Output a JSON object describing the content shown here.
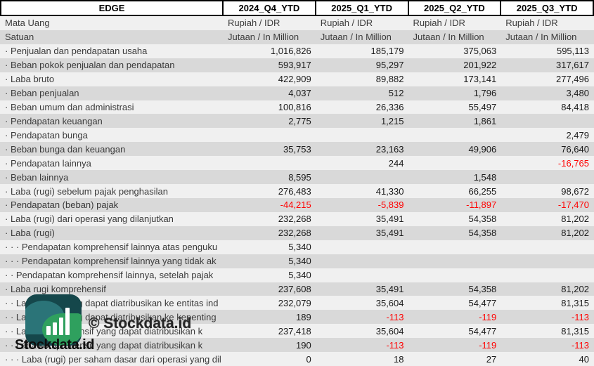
{
  "header": {
    "entity": "EDGE",
    "periods": [
      "2024_Q4_YTD",
      "2025_Q1_YTD",
      "2025_Q2_YTD",
      "2025_Q3_YTD"
    ]
  },
  "meta_rows": [
    {
      "label": "Mata Uang",
      "values": [
        "Rupiah / IDR",
        "Rupiah / IDR",
        "Rupiah / IDR",
        "Rupiah / IDR"
      ]
    },
    {
      "label": "Satuan",
      "values": [
        "Jutaan / In Million",
        "Jutaan / In Million",
        "Jutaan / In Million",
        "Jutaan / In Million"
      ]
    }
  ],
  "rows": [
    {
      "label": "· Penjualan dan pendapatan usaha",
      "values": [
        "1,016,826",
        "185,179",
        "375,063",
        "595,113"
      ]
    },
    {
      "label": "· Beban pokok penjualan dan pendapatan",
      "values": [
        "593,917",
        "95,297",
        "201,922",
        "317,617"
      ]
    },
    {
      "label": "· Laba bruto",
      "values": [
        "422,909",
        "89,882",
        "173,141",
        "277,496"
      ]
    },
    {
      "label": "· Beban penjualan",
      "values": [
        "4,037",
        "512",
        "1,796",
        "3,480"
      ]
    },
    {
      "label": "· Beban umum dan administrasi",
      "values": [
        "100,816",
        "26,336",
        "55,497",
        "84,418"
      ]
    },
    {
      "label": "· Pendapatan keuangan",
      "values": [
        "2,775",
        "1,215",
        "1,861",
        ""
      ]
    },
    {
      "label": "· Pendapatan bunga",
      "values": [
        "",
        "",
        "",
        "2,479"
      ]
    },
    {
      "label": "· Beban bunga dan keuangan",
      "values": [
        "35,753",
        "23,163",
        "49,906",
        "76,640"
      ]
    },
    {
      "label": "· Pendapatan lainnya",
      "values": [
        "",
        "244",
        "",
        "-16,765"
      ]
    },
    {
      "label": "· Beban lainnya",
      "values": [
        "8,595",
        "",
        "1,548",
        ""
      ]
    },
    {
      "label": "· Laba (rugi) sebelum pajak penghasilan",
      "values": [
        "276,483",
        "41,330",
        "66,255",
        "98,672"
      ]
    },
    {
      "label": "· Pendapatan (beban) pajak",
      "values": [
        "-44,215",
        "-5,839",
        "-11,897",
        "-17,470"
      ]
    },
    {
      "label": "· Laba (rugi) dari operasi yang dilanjutkan",
      "values": [
        "232,268",
        "35,491",
        "54,358",
        "81,202"
      ]
    },
    {
      "label": "· Laba (rugi)",
      "values": [
        "232,268",
        "35,491",
        "54,358",
        "81,202"
      ]
    },
    {
      "label": "· · · Pendapatan komprehensif lainnya atas penguku",
      "values": [
        "5,340",
        "",
        "",
        ""
      ]
    },
    {
      "label": "· · · Pendapatan komprehensif lainnya yang tidak ak",
      "values": [
        "5,340",
        "",
        "",
        ""
      ]
    },
    {
      "label": "· · Pendapatan komprehensif lainnya, setelah pajak",
      "values": [
        "5,340",
        "",
        "",
        ""
      ]
    },
    {
      "label": "· Laba rugi komprehensif",
      "values": [
        "237,608",
        "35,491",
        "54,358",
        "81,202"
      ]
    },
    {
      "label": "· · Laba (rugi) yang dapat diatribusikan ke entitas ind",
      "values": [
        "232,079",
        "35,604",
        "54,477",
        "81,315"
      ]
    },
    {
      "label": "· · Laba (rugi) yang dapat diatribusikan ke kepenting",
      "values": [
        "189",
        "-113",
        "-119",
        "-113"
      ]
    },
    {
      "label": "· · Laba komprehensif yang dapat diatribusikan k",
      "values": [
        "237,418",
        "35,604",
        "54,477",
        "81,315"
      ]
    },
    {
      "label": "· · Laba komprehensif yang dapat diatribusikan k",
      "values": [
        "190",
        "-113",
        "-119",
        "-113"
      ]
    },
    {
      "label": "· · · Laba (rugi) per saham dasar dari operasi yang dil",
      "values": [
        "0",
        "18",
        "27",
        "40"
      ]
    }
  ],
  "watermark": {
    "copyright": "© Stockdata.id",
    "brand": "Stockdata.id"
  },
  "colors": {
    "negative": "#ff0000",
    "stripe_light": "#f0f0f0",
    "stripe_dark": "#d9d9d9",
    "header_border": "#000000",
    "logo_background": "#15474b",
    "logo_leaf_teal": "#2b7478",
    "logo_leaf_green": "#2fa05e"
  }
}
